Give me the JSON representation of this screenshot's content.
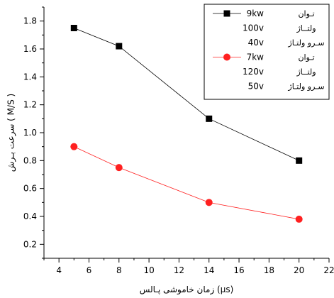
{
  "chart_data": {
    "type": "line",
    "xlabel": "زمان خاموشی پـالس (µs)",
    "ylabel": "سرعت بـرش ( M/S )",
    "xlim": [
      3,
      22
    ],
    "ylim": [
      0.1,
      1.9
    ],
    "xticks": [
      "4",
      "6",
      "8",
      "10",
      "12",
      "14",
      "16",
      "18",
      "20",
      "22"
    ],
    "yticks": [
      "0.2",
      "0.4",
      "0.6",
      "0.8",
      "1.0",
      "1.2",
      "1.4",
      "1.6",
      "1.8"
    ],
    "grid": false,
    "legend_position": "top-right",
    "series": [
      {
        "x": [
          5,
          8,
          14,
          20
        ],
        "values": [
          1.75,
          1.62,
          1.1,
          0.8
        ],
        "color": "#000000",
        "marker": "square",
        "legend_lines": [
          {
            "value": "9kw",
            "label": "تـوان"
          },
          {
            "value": "100v",
            "label": "ولتــاژ"
          },
          {
            "value": "40v",
            "label": "سـرو ولتـاژ"
          }
        ]
      },
      {
        "x": [
          5,
          8,
          14,
          20
        ],
        "values": [
          0.9,
          0.75,
          0.5,
          0.38
        ],
        "color": "#ff2020",
        "marker": "circle",
        "legend_lines": [
          {
            "value": "7kw",
            "label": "تـوان"
          },
          {
            "value": "120v",
            "label": "ولتــاژ"
          },
          {
            "value": "50v",
            "label": "سـرو ولتـاژ"
          }
        ]
      }
    ]
  }
}
